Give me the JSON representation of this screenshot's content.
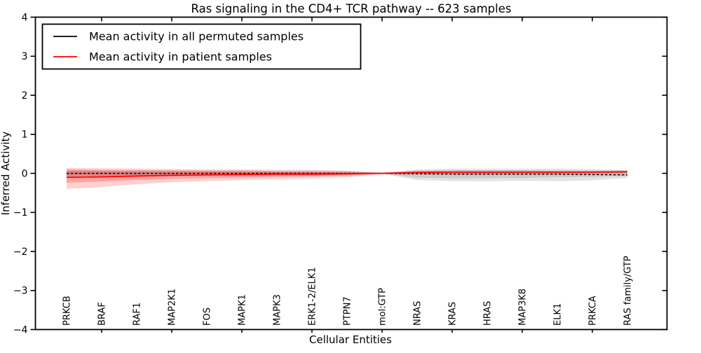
{
  "figure": {
    "title": "Ras signaling in the CD4+ TCR pathway -- 623 samples",
    "xlabel": "Cellular Entities",
    "ylabel": "Inferred Activity"
  },
  "legend": {
    "items": [
      {
        "label": "Mean activity in all permuted samples",
        "color": "#000000"
      },
      {
        "label": "Mean activity in patient samples",
        "color": "#ff0000"
      }
    ]
  },
  "chart_data": {
    "type": "line",
    "title": "Ras signaling in the CD4+ TCR pathway -- 623 samples",
    "xlabel": "Cellular Entities",
    "ylabel": "Inferred Activity",
    "ylim": [
      -4,
      4
    ],
    "yticks": [
      4,
      3,
      2,
      1,
      0,
      -1,
      -2,
      -3,
      -4
    ],
    "grid": false,
    "legend_position": "upper left",
    "xtick_mark_indices": [
      1,
      3,
      5,
      7,
      9,
      11,
      13,
      15
    ],
    "categories": [
      "PRKCB",
      "BRAF",
      "RAF1",
      "MAP2K1",
      "FOS",
      "MAPK1",
      "MAPK3",
      "ERK1-2/ELK1",
      "PTPN7",
      "mol:GTP",
      "NRAS",
      "KRAS",
      "HRAS",
      "MAP3K8",
      "ELK1",
      "PRKCA",
      "RAS family/GTP"
    ],
    "series": [
      {
        "name": "Mean activity in all permuted samples",
        "color": "#000000",
        "style": "dashed",
        "values": [
          0.0,
          0.0,
          0.0,
          0.0,
          0.0,
          0.0,
          0.0,
          0.0,
          0.0,
          0.0,
          -0.01,
          -0.02,
          -0.02,
          -0.02,
          -0.02,
          -0.03,
          -0.04
        ]
      },
      {
        "name": "Mean activity in patient samples",
        "color": "#ff0000",
        "style": "solid",
        "values": [
          -0.1,
          -0.09,
          -0.07,
          -0.05,
          -0.04,
          -0.03,
          -0.02,
          -0.02,
          -0.01,
          0.0,
          0.02,
          0.03,
          0.03,
          0.03,
          0.03,
          0.03,
          0.04
        ]
      }
    ],
    "bands": [
      {
        "name": "permuted-band-outer",
        "color": "#808080",
        "opacity": 0.22,
        "upper": [
          0.08,
          0.07,
          0.07,
          0.06,
          0.06,
          0.06,
          0.05,
          0.05,
          0.04,
          0.01,
          0.1,
          0.12,
          0.12,
          0.12,
          0.12,
          0.11,
          0.08
        ],
        "lower": [
          -0.1,
          -0.09,
          -0.08,
          -0.08,
          -0.07,
          -0.07,
          -0.06,
          -0.06,
          -0.04,
          -0.01,
          -0.17,
          -0.2,
          -0.2,
          -0.19,
          -0.2,
          -0.18,
          -0.12
        ]
      },
      {
        "name": "permuted-band-inner",
        "color": "#808080",
        "opacity": 0.25,
        "upper": [
          0.05,
          0.05,
          0.04,
          0.04,
          0.04,
          0.04,
          0.03,
          0.03,
          0.02,
          0.01,
          0.06,
          0.08,
          0.08,
          0.08,
          0.07,
          0.06,
          0.05
        ],
        "lower": [
          -0.06,
          -0.06,
          -0.05,
          -0.05,
          -0.05,
          -0.04,
          -0.04,
          -0.04,
          -0.03,
          -0.01,
          -0.11,
          -0.13,
          -0.12,
          -0.12,
          -0.1,
          -0.09,
          -0.07
        ]
      },
      {
        "name": "patient-band-outer",
        "color": "#ff0000",
        "opacity": 0.18,
        "upper": [
          0.14,
          0.13,
          0.12,
          0.11,
          0.1,
          0.1,
          0.09,
          0.09,
          0.07,
          0.02,
          0.07,
          0.07,
          0.07,
          0.07,
          0.07,
          0.07,
          0.08
        ],
        "lower": [
          -0.4,
          -0.35,
          -0.28,
          -0.23,
          -0.2,
          -0.17,
          -0.15,
          -0.13,
          -0.1,
          -0.02,
          -0.02,
          -0.02,
          -0.02,
          -0.01,
          -0.01,
          -0.01,
          0.0
        ]
      },
      {
        "name": "patient-band-inner",
        "color": "#ff0000",
        "opacity": 0.22,
        "upper": [
          0.1,
          0.09,
          0.08,
          0.08,
          0.07,
          0.07,
          0.06,
          0.06,
          0.05,
          0.01,
          0.05,
          0.05,
          0.05,
          0.05,
          0.05,
          0.05,
          0.06
        ],
        "lower": [
          -0.24,
          -0.21,
          -0.17,
          -0.14,
          -0.12,
          -0.11,
          -0.09,
          -0.08,
          -0.06,
          -0.01,
          0.0,
          0.0,
          0.0,
          0.0,
          0.0,
          0.01,
          0.01
        ]
      }
    ]
  }
}
